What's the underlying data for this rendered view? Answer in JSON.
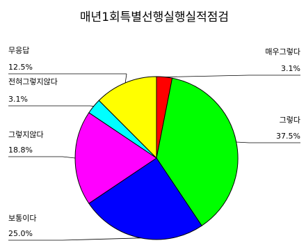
{
  "chart_data": {
    "type": "pie",
    "title": "매년1회특별선행실행실적점검",
    "slices": [
      {
        "label": "매우그렇다",
        "value": 3.1,
        "display": "3.1%",
        "color": "#ff0000"
      },
      {
        "label": "그렇다",
        "value": 37.5,
        "display": "37.5%",
        "color": "#00ff00"
      },
      {
        "label": "보통이다",
        "value": 25.0,
        "display": "25.0%",
        "color": "#0000ff"
      },
      {
        "label": "그렇지않다",
        "value": 18.8,
        "display": "18.8%",
        "color": "#ff00ff"
      },
      {
        "label": "전혀그렇지않다",
        "value": 3.1,
        "display": "3.1%",
        "color": "#00ffff"
      },
      {
        "label": "무응답",
        "value": 12.5,
        "display": "12.5%",
        "color": "#ffff00"
      }
    ],
    "legend": "none",
    "grid": false
  }
}
